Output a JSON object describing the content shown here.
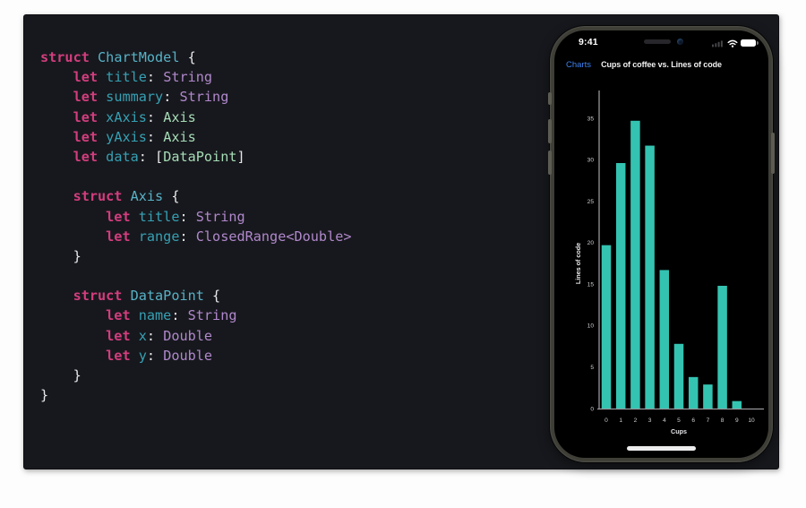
{
  "colors": {
    "slide-bg": "#17181d",
    "kw": "#d33d7e",
    "decl": "#57b2c7",
    "prop": "#36a0b3",
    "sdk": "#b088cc",
    "type": "#a6dcb6",
    "pl": "#e9e9eb",
    "ios-blue": "#3d82f0",
    "bar": "#34c3b1",
    "axis": "#98989c",
    "tick": "#cfcfd4"
  },
  "code": {
    "lines": [
      [
        [
          "kw",
          "struct"
        ],
        [
          "pl",
          " "
        ],
        [
          "decl",
          "ChartModel"
        ],
        [
          "pl",
          " {"
        ]
      ],
      [
        [
          "pl",
          "    "
        ],
        [
          "kw",
          "let"
        ],
        [
          "pl",
          " "
        ],
        [
          "prop",
          "title"
        ],
        [
          "pl",
          ": "
        ],
        [
          "sdk",
          "String"
        ]
      ],
      [
        [
          "pl",
          "    "
        ],
        [
          "kw",
          "let"
        ],
        [
          "pl",
          " "
        ],
        [
          "prop",
          "summary"
        ],
        [
          "pl",
          ": "
        ],
        [
          "sdk",
          "String"
        ]
      ],
      [
        [
          "pl",
          "    "
        ],
        [
          "kw",
          "let"
        ],
        [
          "pl",
          " "
        ],
        [
          "prop",
          "xAxis"
        ],
        [
          "pl",
          ": "
        ],
        [
          "type",
          "Axis"
        ]
      ],
      [
        [
          "pl",
          "    "
        ],
        [
          "kw",
          "let"
        ],
        [
          "pl",
          " "
        ],
        [
          "prop",
          "yAxis"
        ],
        [
          "pl",
          ": "
        ],
        [
          "type",
          "Axis"
        ]
      ],
      [
        [
          "pl",
          "    "
        ],
        [
          "kw",
          "let"
        ],
        [
          "pl",
          " "
        ],
        [
          "prop",
          "data"
        ],
        [
          "pl",
          ": ["
        ],
        [
          "type",
          "DataPoint"
        ],
        [
          "pl",
          "]"
        ]
      ],
      [],
      [
        [
          "pl",
          "    "
        ],
        [
          "kw",
          "struct"
        ],
        [
          "pl",
          " "
        ],
        [
          "decl",
          "Axis"
        ],
        [
          "pl",
          " {"
        ]
      ],
      [
        [
          "pl",
          "        "
        ],
        [
          "kw",
          "let"
        ],
        [
          "pl",
          " "
        ],
        [
          "prop",
          "title"
        ],
        [
          "pl",
          ": "
        ],
        [
          "sdk",
          "String"
        ]
      ],
      [
        [
          "pl",
          "        "
        ],
        [
          "kw",
          "let"
        ],
        [
          "pl",
          " "
        ],
        [
          "prop",
          "range"
        ],
        [
          "pl",
          ": "
        ],
        [
          "sdk",
          "ClosedRange<Double>"
        ]
      ],
      [
        [
          "pl",
          "    }"
        ]
      ],
      [],
      [
        [
          "pl",
          "    "
        ],
        [
          "kw",
          "struct"
        ],
        [
          "pl",
          " "
        ],
        [
          "decl",
          "DataPoint"
        ],
        [
          "pl",
          " {"
        ]
      ],
      [
        [
          "pl",
          "        "
        ],
        [
          "kw",
          "let"
        ],
        [
          "pl",
          " "
        ],
        [
          "prop",
          "name"
        ],
        [
          "pl",
          ": "
        ],
        [
          "sdk",
          "String"
        ]
      ],
      [
        [
          "pl",
          "        "
        ],
        [
          "kw",
          "let"
        ],
        [
          "pl",
          " "
        ],
        [
          "prop",
          "x"
        ],
        [
          "pl",
          ": "
        ],
        [
          "sdk",
          "Double"
        ]
      ],
      [
        [
          "pl",
          "        "
        ],
        [
          "kw",
          "let"
        ],
        [
          "pl",
          " "
        ],
        [
          "prop",
          "y"
        ],
        [
          "pl",
          ": "
        ],
        [
          "sdk",
          "Double"
        ]
      ],
      [
        [
          "pl",
          "    }"
        ]
      ],
      [
        [
          "pl",
          "}"
        ]
      ]
    ]
  },
  "phone": {
    "status": {
      "time": "9:41"
    },
    "nav": {
      "back_label": "Charts",
      "title": "Cups of coffee vs. Lines of code"
    }
  },
  "chart_data": {
    "type": "bar",
    "title": "Cups of coffee vs. Lines of code",
    "xlabel": "Cups",
    "ylabel": "Lines of code",
    "x": [
      0,
      1,
      2,
      3,
      4,
      5,
      6,
      7,
      8,
      9
    ],
    "values": [
      19.7,
      29.6,
      34.7,
      31.7,
      16.7,
      7.8,
      3.8,
      2.9,
      14.8,
      0.9
    ],
    "x_ticks": [
      0,
      1,
      2,
      3,
      4,
      5,
      6,
      7,
      8,
      9,
      10
    ],
    "y_ticks": [
      0,
      5,
      10,
      15,
      20,
      25,
      30,
      35
    ],
    "xlim": [
      -0.6,
      10.6
    ],
    "ylim": [
      0,
      38
    ],
    "grid": false,
    "legend": false,
    "bar_color": "#34c3b1",
    "background": "#000000"
  }
}
